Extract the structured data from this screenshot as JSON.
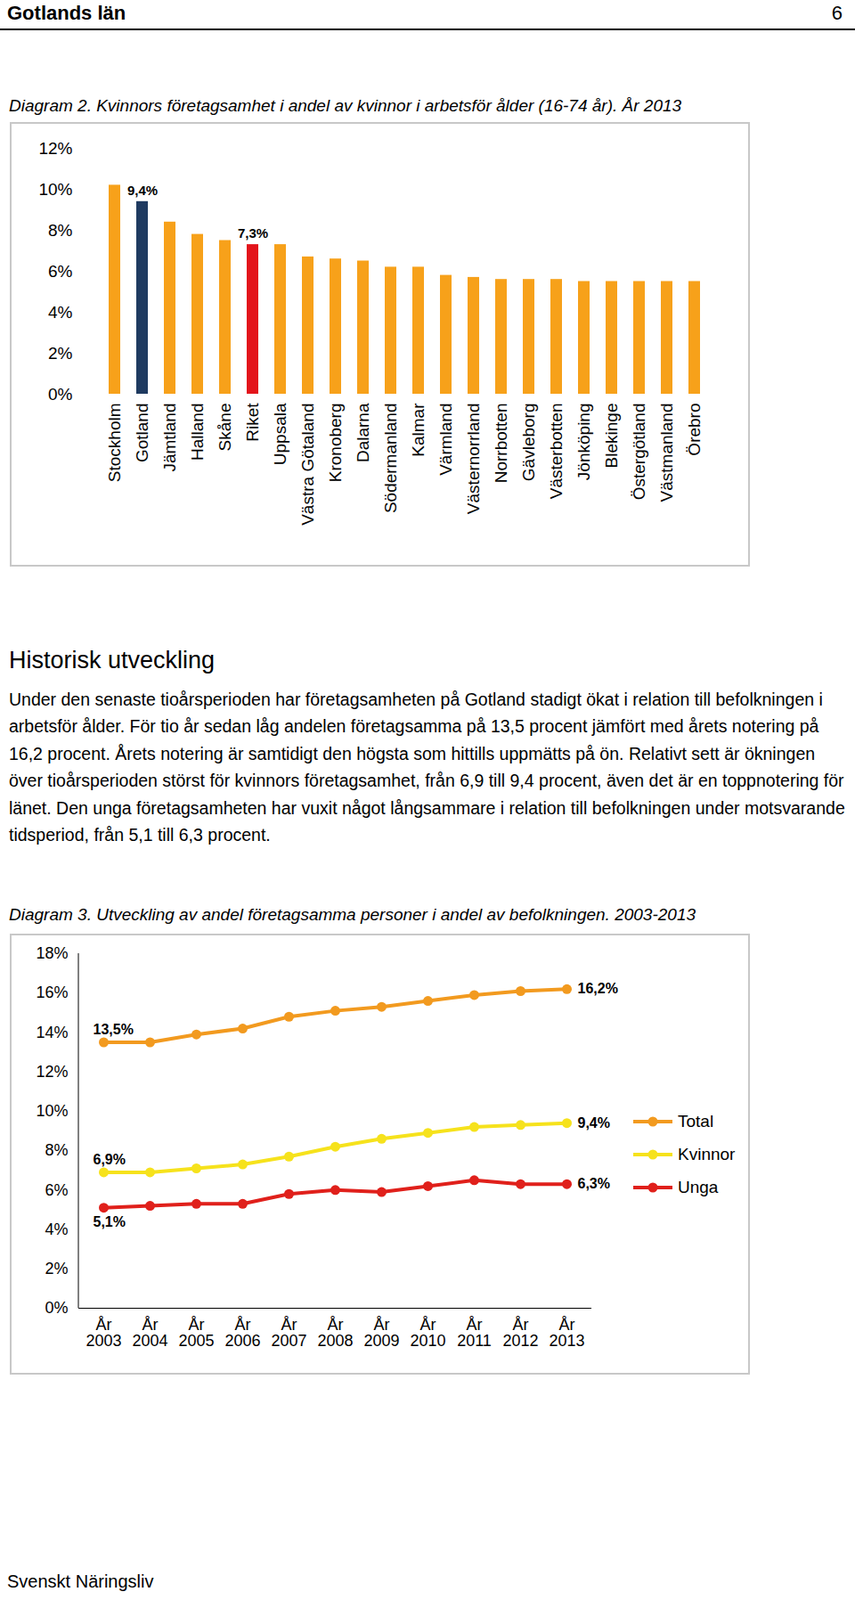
{
  "header": {
    "title": "Gotlands län",
    "page": 6
  },
  "chart_data": [
    {
      "type": "bar",
      "title": "Diagram 2. Kvinnors företagsamhet i andel av kvinnor i arbetsför ålder (16-74 år). År 2013",
      "categories": [
        "Stockholm",
        "Gotland",
        "Jämtland",
        "Halland",
        "Skåne",
        "Riket",
        "Uppsala",
        "Västra Götaland",
        "Kronoberg",
        "Dalarna",
        "Södermanland",
        "Kalmar",
        "Värmland",
        "Västernorrland",
        "Norrbotten",
        "Gävleborg",
        "Västerbotten",
        "Jönköping",
        "Blekinge",
        "Östergötland",
        "Västmanland",
        "Örebro"
      ],
      "values": [
        10.2,
        9.4,
        8.4,
        7.8,
        7.5,
        7.3,
        7.3,
        6.7,
        6.6,
        6.5,
        6.2,
        6.2,
        5.8,
        5.7,
        5.6,
        5.6,
        5.6,
        5.5,
        5.5,
        5.5,
        5.5,
        5.5
      ],
      "value_labels": [
        null,
        "9,4%",
        null,
        null,
        null,
        "7,3%",
        null,
        null,
        null,
        null,
        null,
        null,
        null,
        null,
        null,
        null,
        null,
        null,
        null,
        null,
        null,
        null
      ],
      "colors": [
        "#f7a11a",
        "#1f3a60",
        "#f7a11a",
        "#f7a11a",
        "#f7a11a",
        "#e3141b",
        "#f7a11a",
        "#f7a11a",
        "#f7a11a",
        "#f7a11a",
        "#f7a11a",
        "#f7a11a",
        "#f7a11a",
        "#f7a11a",
        "#f7a11a",
        "#f7a11a",
        "#f7a11a",
        "#f7a11a",
        "#f7a11a",
        "#f7a11a",
        "#f7a11a",
        "#f7a11a"
      ],
      "ylim": [
        0,
        12
      ],
      "yticks": [
        {
          "value": 0,
          "label": "0%"
        },
        {
          "value": 2,
          "label": "2%"
        },
        {
          "value": 4,
          "label": "4%"
        },
        {
          "value": 6,
          "label": "6%"
        },
        {
          "value": 8,
          "label": "8%"
        },
        {
          "value": 10,
          "label": "10%"
        },
        {
          "value": 12,
          "label": "12%"
        }
      ],
      "grid": false
    },
    {
      "type": "line",
      "title": "Diagram 3. Utveckling av andel företagsamma personer i andel av befolkningen. 2003-2013",
      "categories": [
        "År 2003",
        "År 2004",
        "År 2005",
        "År 2006",
        "År 2007",
        "År 2008",
        "År 2009",
        "År 2010",
        "År 2011",
        "År 2012",
        "År 2013"
      ],
      "series": [
        {
          "name": "Total",
          "color": "#f29a1f",
          "marker": "circle",
          "values": [
            13.5,
            13.5,
            13.9,
            14.2,
            14.8,
            15.1,
            15.3,
            15.6,
            15.9,
            16.1,
            16.2
          ],
          "value_labels": [
            "13,5%",
            null,
            null,
            null,
            null,
            null,
            null,
            null,
            null,
            null,
            "16,2%"
          ]
        },
        {
          "name": "Kvinnor",
          "color": "#f6e21c",
          "marker": "circle",
          "values": [
            6.9,
            6.9,
            7.1,
            7.3,
            7.7,
            8.2,
            8.6,
            8.9,
            9.2,
            9.3,
            9.4
          ],
          "value_labels": [
            "6,9%",
            null,
            null,
            null,
            null,
            null,
            null,
            null,
            null,
            null,
            "9,4%"
          ]
        },
        {
          "name": "Unga",
          "color": "#e0201b",
          "marker": "circle",
          "values": [
            5.1,
            5.2,
            5.3,
            5.3,
            5.8,
            6.0,
            5.9,
            6.2,
            6.5,
            6.3,
            6.3
          ],
          "value_labels": [
            "5,1%",
            null,
            null,
            null,
            null,
            null,
            null,
            null,
            null,
            null,
            "6,3%"
          ]
        }
      ],
      "ylim": [
        0,
        18
      ],
      "yticks": [
        {
          "value": 0,
          "label": "0%"
        },
        {
          "value": 2,
          "label": "2%"
        },
        {
          "value": 4,
          "label": "4%"
        },
        {
          "value": 6,
          "label": "6%"
        },
        {
          "value": 8,
          "label": "8%"
        },
        {
          "value": 10,
          "label": "10%"
        },
        {
          "value": 12,
          "label": "12%"
        },
        {
          "value": 14,
          "label": "14%"
        },
        {
          "value": 16,
          "label": "16%"
        },
        {
          "value": 18,
          "label": "18%"
        }
      ],
      "legend": "right",
      "grid": false
    }
  ],
  "text": {
    "heading": "Historisk utveckling",
    "paragraph": "Under den senaste tioårsperioden har företagsamheten på Gotland stadigt ökat i relation till befolkningen i arbetsför ålder. För tio år sedan låg andelen företagsamma på 13,5 procent jämfört med årets notering på 16,2 procent. Årets notering är samtidigt den högsta som hittills uppmätts på ön. Relativt sett är ökningen över tioårsperioden störst för kvinnors företagsamhet, från 6,9 till 9,4 procent, även det är en toppnotering för länet. Den unga företagsamheten har vuxit något långsammare i relation till befolkningen under motsvarande tidsperiod, från 5,1 till 6,3 procent."
  },
  "footer": "Svenskt Näringsliv"
}
